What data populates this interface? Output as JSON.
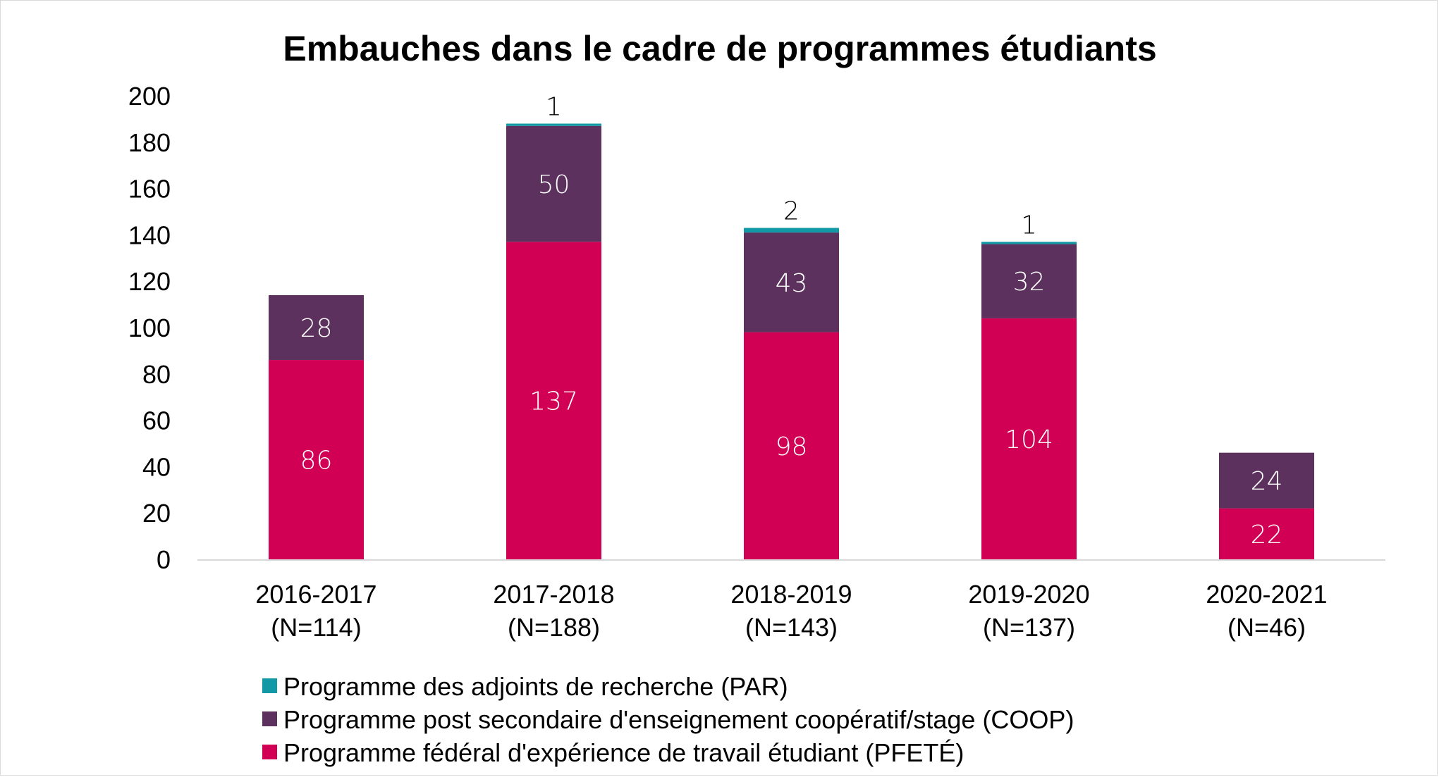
{
  "chart_data": {
    "type": "bar",
    "stacked": true,
    "title": "Embauches dans le cadre de programmes étudiants",
    "xlabel": "",
    "ylabel": "",
    "ylim": [
      0,
      200
    ],
    "yticks": [
      0,
      20,
      40,
      60,
      80,
      100,
      120,
      140,
      160,
      180,
      200
    ],
    "grid": false,
    "legend_position": "bottom-left",
    "categories": [
      [
        "2016-2017",
        "(N=114)"
      ],
      [
        "2017-2018",
        "(N=188)"
      ],
      [
        "2018-2019",
        "(N=143)"
      ],
      [
        "2019-2020",
        "(N=137)"
      ],
      [
        "2020-2021",
        "(N=46)"
      ]
    ],
    "series": [
      {
        "name": "Programme fédéral d'expérience de travail étudiant (PFETÉ)",
        "color": "#d20054",
        "label_color": "#ffffff",
        "label_inside": true,
        "values": [
          86,
          137,
          98,
          104,
          22
        ]
      },
      {
        "name": "Programme post secondaire d'enseignement coopératif/stage (COOP)",
        "color": "#5c315d",
        "label_color": "#ffffff",
        "label_inside": true,
        "values": [
          28,
          50,
          43,
          32,
          24
        ]
      },
      {
        "name": "Programme des adjoints de recherche (PAR)",
        "color": "#1398a6",
        "label_color": "#000000",
        "label_inside": false,
        "values": [
          0,
          1,
          2,
          1,
          0
        ]
      }
    ],
    "legend_order": [
      2,
      1,
      0
    ],
    "axis_color": "#d9d9d9"
  }
}
